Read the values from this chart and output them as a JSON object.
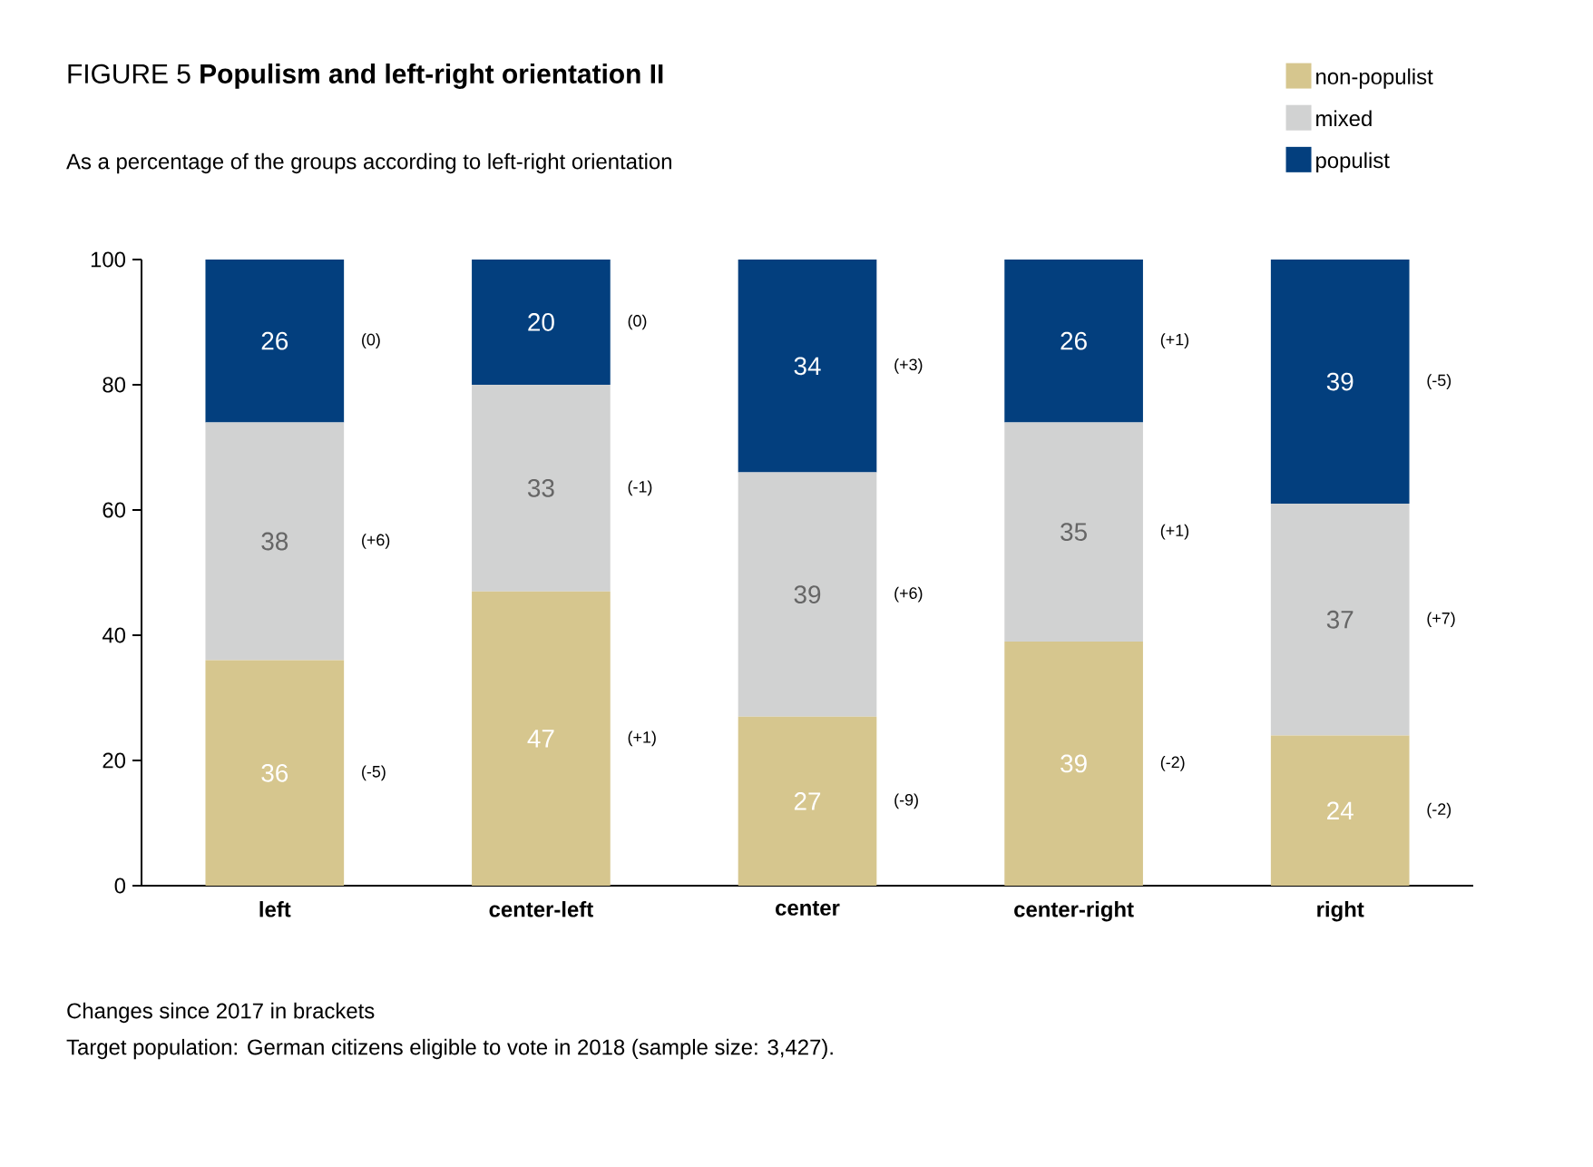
{
  "chart_data": {
    "type": "bar",
    "stacked": true,
    "title": "FIGURE 5 **Populism and left-right orientation II**",
    "subtitle": "As a percentage of the groups according to left-right orientation",
    "categories": [
      "left",
      "center-left",
      "center",
      "center-right",
      "right"
    ],
    "series": [
      {
        "name": "non-populist",
        "color": "#d6c68e",
        "values": [
          36,
          47,
          27,
          39,
          24
        ]
      },
      {
        "name": "mixed",
        "color": "#d1d2d2",
        "values": [
          38,
          33,
          39,
          35,
          37
        ]
      },
      {
        "name": "populist",
        "color": "#033f7e",
        "values": [
          26,
          20,
          34,
          26,
          39
        ]
      }
    ],
    "ylim": [
      0,
      100
    ],
    "yticks": [
      0,
      20,
      40,
      60,
      80,
      100
    ],
    "data_labels": true,
    "legend": "top right",
    "annotations": [
      "(-5)",
      "(+6)",
      "(0)",
      "(+1)",
      "(-1)",
      "(0)",
      "(-9)",
      "(+6)",
      "(+3)",
      "(-2)",
      "(+1)",
      "(+1)",
      "(-2)",
      "(+7)",
      "(-5)",
      "Changes since 2017 in brackets",
      "Target population: German citizens eligible to vote in 2018 (sample size: 3,427)."
    ]
  }
}
